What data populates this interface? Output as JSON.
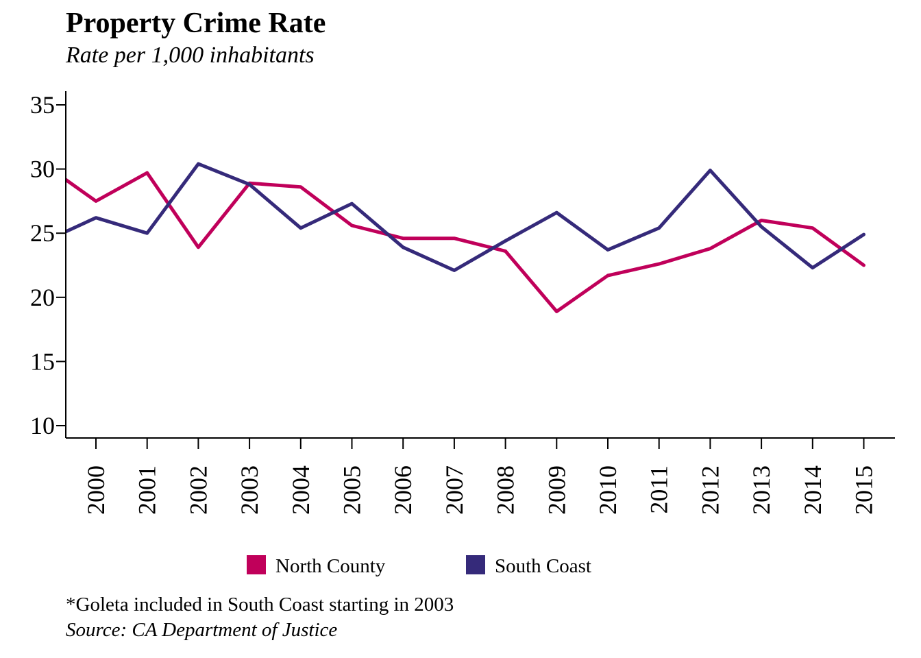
{
  "chart_data": {
    "type": "line",
    "title": "Property Crime Rate",
    "subtitle": "Rate per 1,000 inhabitants",
    "xlabel": "",
    "ylabel": "",
    "categories": [
      "2000",
      "2001",
      "2002",
      "2003",
      "2004",
      "2005",
      "2006",
      "2007",
      "2008",
      "2009",
      "2010",
      "2011",
      "2012",
      "2013",
      "2014",
      "2015"
    ],
    "y_ticks": [
      "10",
      "15",
      "20",
      "25",
      "30",
      "35"
    ],
    "ylim": [
      10,
      35
    ],
    "grid": false,
    "legend_placement": "bottom",
    "series": [
      {
        "name": "North County",
        "color": "#C0005A",
        "values": [
          29.2,
          27.5,
          29.7,
          23.9,
          28.9,
          28.6,
          25.6,
          24.6,
          24.6,
          23.6,
          18.9,
          21.7,
          22.6,
          23.8,
          26.0,
          25.4,
          22.5
        ]
      },
      {
        "name": "South Coast",
        "color": "#352A7A",
        "values": [
          25.1,
          26.2,
          25.0,
          30.4,
          28.8,
          25.4,
          27.3,
          23.9,
          22.1,
          24.4,
          26.6,
          23.7,
          25.4,
          29.9,
          25.5,
          22.3,
          24.9
        ]
      }
    ],
    "x_values": [
      -0.6,
      0,
      1,
      2,
      3,
      4,
      5,
      6,
      7,
      8,
      9,
      10,
      11,
      12,
      13,
      14,
      15
    ]
  },
  "footnote": "*Goleta included in South Coast starting in 2003",
  "source": "Source: CA Department of Justice"
}
